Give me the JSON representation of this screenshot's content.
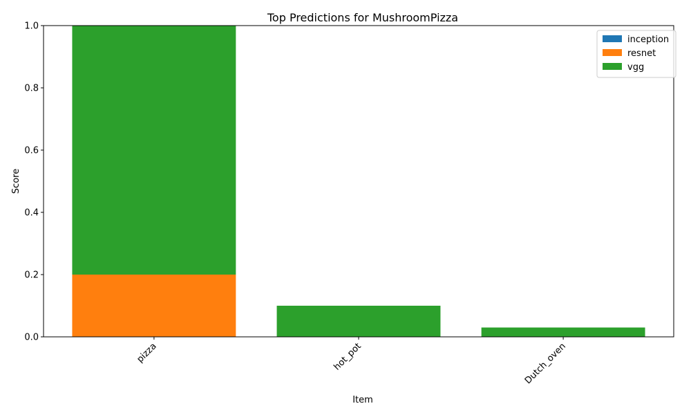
{
  "chart_data": {
    "type": "bar",
    "stacked": true,
    "title": "Top Predictions for MushroomPizza",
    "xlabel": "Item",
    "ylabel": "Score",
    "categories": [
      "pizza",
      "hot_pot",
      "Dutch_oven"
    ],
    "ylim": [
      0,
      1.0
    ],
    "yticks": [
      "0.0",
      "0.2",
      "0.4",
      "0.6",
      "0.8",
      "1.0"
    ],
    "legend_position": "top-right",
    "grid": false,
    "series": [
      {
        "name": "inception",
        "color": "#1f77b4",
        "values": [
          0.0,
          0.0,
          0.0
        ]
      },
      {
        "name": "resnet",
        "color": "#ff7f0e",
        "values": [
          0.2,
          0.0,
          0.0
        ]
      },
      {
        "name": "vgg",
        "color": "#2ca02c",
        "values": [
          0.8,
          0.1,
          0.03
        ]
      }
    ]
  }
}
